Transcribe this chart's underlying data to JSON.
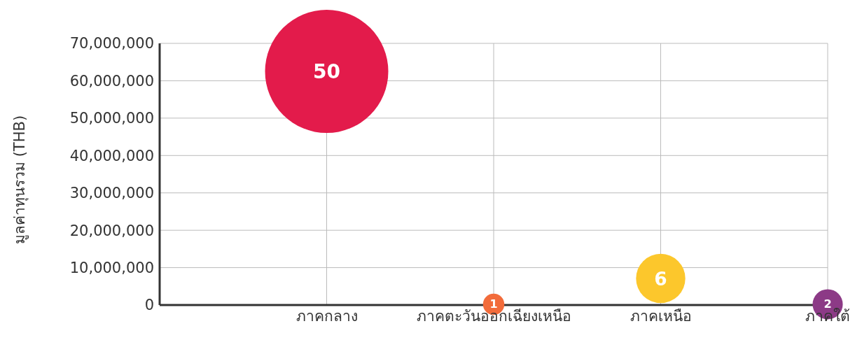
{
  "chart_data": {
    "type": "bubble",
    "ylabel": "มูลค่าทุนรวม (THB)",
    "categories": [
      "ภาคกลาง",
      "ภาคตะวันออกเฉียงเหนือ",
      "ภาคเหนือ",
      "ภาคใต้"
    ],
    "values": [
      62500000,
      200000,
      7100000,
      200000
    ],
    "sizes": [
      1,
      0.03,
      0.16,
      0.06
    ],
    "annotations": [
      {
        "text": "50",
        "x": "ภาคกลาง",
        "y": 62500000
      },
      {
        "text": "1",
        "x": "ภาคตะวันออกเฉียงเหนือ",
        "y": 200000
      },
      {
        "text": "6",
        "x": "ภาคเหนือ",
        "y": 7100000
      },
      {
        "text": "2",
        "x": "ภาคใต้",
        "y": 200000
      }
    ],
    "colors": [
      "#e31b4b",
      "#f26b3a",
      "#fcc72c",
      "#8c3a86"
    ],
    "ylim": [
      0,
      70000000
    ],
    "yticks": [
      {
        "value": 0,
        "label": "0"
      },
      {
        "value": 10000000,
        "label": "10,000,000"
      },
      {
        "value": 20000000,
        "label": "20,000,000"
      },
      {
        "value": 30000000,
        "label": "30,000,000"
      },
      {
        "value": 40000000,
        "label": "40,000,000"
      },
      {
        "value": 50000000,
        "label": "50,000,000"
      },
      {
        "value": 60000000,
        "label": "60,000,000"
      },
      {
        "value": 70000000,
        "label": "70,000,000"
      }
    ],
    "grid": true
  }
}
